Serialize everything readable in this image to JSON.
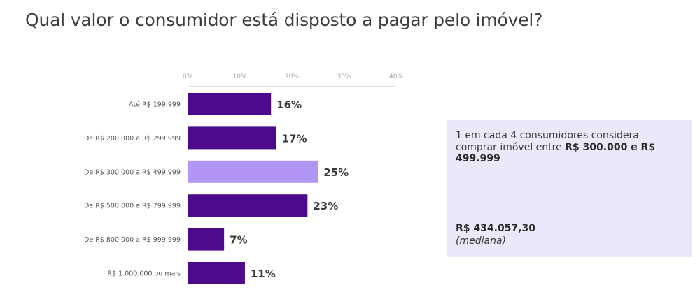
{
  "title": "Qual valor o consumidor está disposto a pagar pelo imóvel?",
  "chart_data": {
    "type": "bar",
    "orientation": "horizontal",
    "categories": [
      "Até R$ 199.999",
      "De R$ 200.000 a R$ 299.999",
      "De R$ 300.000 a R$ 499.999",
      "De R$ 500.000 a R$ 799.999",
      "De R$ 800.000 a R$ 999.999",
      "R$ 1.000.000 ou mais"
    ],
    "values": [
      16,
      17,
      25,
      23,
      7,
      11
    ],
    "value_labels": [
      "16%",
      "17%",
      "25%",
      "23%",
      "7%",
      "11%"
    ],
    "xlim": [
      0,
      40
    ],
    "x_ticks": [
      "0%",
      "10%",
      "20%",
      "30%",
      "40%"
    ],
    "x_axis_position": "top",
    "highlight_index": 2,
    "colors": {
      "bar": "#4b0b8c",
      "highlight": "#b296f5"
    }
  },
  "info": {
    "text_before": "1 em cada 4 consumidores considera comprar imóvel entre ",
    "text_bold": "R$ 300.000 e R$ 499.999",
    "median_value": "R$ 434.057,30",
    "median_label": "(mediana)"
  }
}
